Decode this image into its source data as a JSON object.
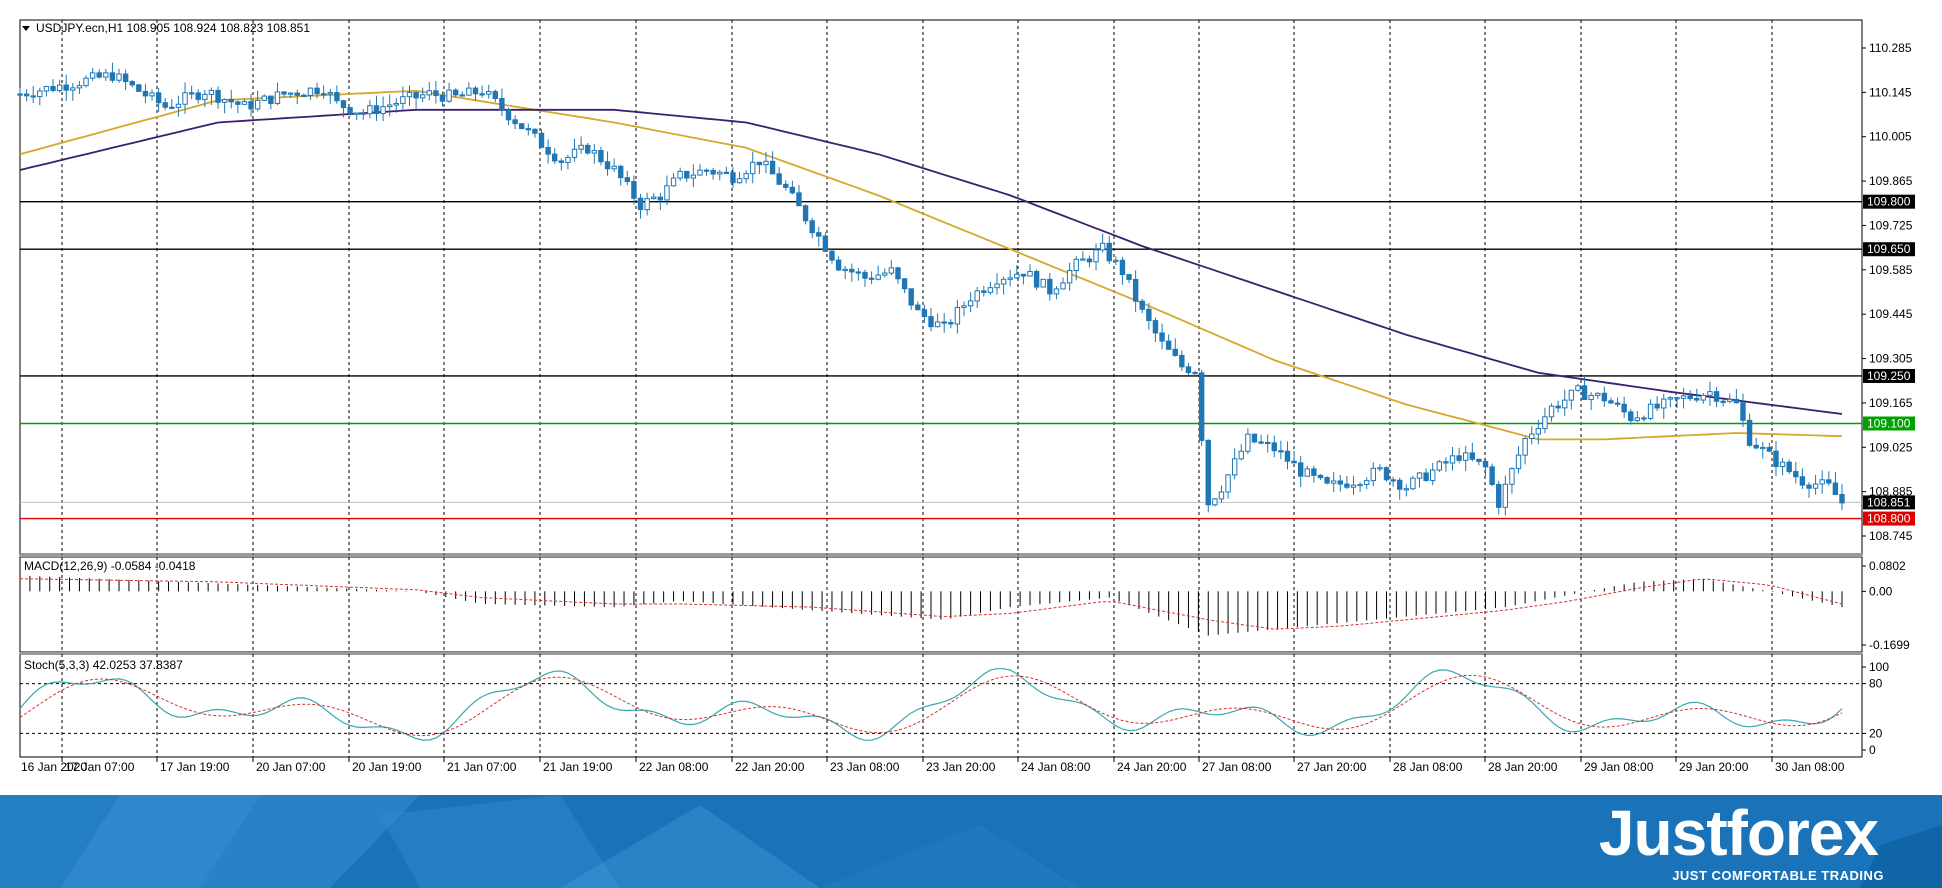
{
  "window": {
    "title": "USDJPY.ecn,H1  108.905 108.924 108.823 108.851",
    "indicators": {
      "macd": "MACD(12,26,9) -0.0584 -0.0418",
      "stoch": "Stoch(5,3,3) 42.0253 37.8387"
    }
  },
  "brand": {
    "name": "Justforex",
    "tagline": "JUST COMFORTABLE TRADING"
  },
  "colors": {
    "candle": "#1f77b4",
    "ma_fast": "#d4a82a",
    "ma_slow": "#3c1f6e",
    "support_level": "#dd0000",
    "pivot_level": "#00a000",
    "resistance_levels": "#000000",
    "stoch_main": "#3aa7b0",
    "stoch_signal": "#d83030",
    "brand_bg": "#1a73b8"
  },
  "chart_data": {
    "type": "line",
    "symbol": "USDJPY.ecn",
    "timeframe": "H1",
    "ohlc_last": {
      "open": 108.905,
      "high": 108.924,
      "low": 108.823,
      "close": 108.851
    },
    "ylim": [
      108.745,
      110.285
    ],
    "y_ticks": [
      "110.285",
      "110.145",
      "110.005",
      "109.865",
      "109.725",
      "109.585",
      "109.445",
      "109.305",
      "109.165",
      "109.025",
      "108.885",
      "108.745"
    ],
    "x_ticks": [
      "16 Jan 2020",
      "17 Jan 07:00",
      "17 Jan 19:00",
      "20 Jan 07:00",
      "20 Jan 19:00",
      "21 Jan 07:00",
      "21 Jan 19:00",
      "22 Jan 08:00",
      "22 Jan 20:00",
      "23 Jan 08:00",
      "23 Jan 20:00",
      "24 Jan 08:00",
      "24 Jan 20:00",
      "27 Jan 08:00",
      "27 Jan 20:00",
      "28 Jan 08:00",
      "28 Jan 20:00",
      "29 Jan 08:00",
      "29 Jan 20:00",
      "30 Jan 08:00"
    ],
    "horizontal_levels": [
      {
        "value": 109.8,
        "label": "109.800",
        "color": "#000000"
      },
      {
        "value": 109.65,
        "label": "109.650",
        "color": "#000000"
      },
      {
        "value": 109.25,
        "label": "109.250",
        "color": "#000000"
      },
      {
        "value": 109.1,
        "label": "109.100",
        "color": "#00a000"
      },
      {
        "value": 108.8,
        "label": "108.800",
        "color": "#dd0000"
      }
    ],
    "current_price": {
      "value": 108.851,
      "label": "108.851"
    },
    "price_path": [
      [
        0,
        110.14
      ],
      [
        14,
        110.2
      ],
      [
        22,
        110.1
      ],
      [
        28,
        110.15
      ],
      [
        34,
        110.1
      ],
      [
        40,
        110.14
      ],
      [
        46,
        110.16
      ],
      [
        48,
        110.11
      ],
      [
        52,
        110.08
      ],
      [
        58,
        110.12
      ],
      [
        62,
        110.14
      ],
      [
        66,
        110.13
      ],
      [
        70,
        110.15
      ],
      [
        78,
        110.0
      ],
      [
        82,
        109.93
      ],
      [
        86,
        109.97
      ],
      [
        90,
        109.9
      ],
      [
        94,
        109.79
      ],
      [
        97,
        109.82
      ],
      [
        100,
        109.88
      ],
      [
        104,
        109.9
      ],
      [
        108,
        109.88
      ],
      [
        112,
        109.93
      ],
      [
        116,
        109.84
      ],
      [
        120,
        109.72
      ],
      [
        124,
        109.6
      ],
      [
        128,
        109.56
      ],
      [
        132,
        109.58
      ],
      [
        136,
        109.45
      ],
      [
        140,
        109.4
      ],
      [
        144,
        109.5
      ],
      [
        148,
        109.56
      ],
      [
        152,
        109.58
      ],
      [
        156,
        109.52
      ],
      [
        160,
        109.6
      ],
      [
        164,
        109.65
      ],
      [
        167,
        109.58
      ],
      [
        170,
        109.45
      ],
      [
        173,
        109.35
      ],
      [
        176,
        109.28
      ],
      [
        178,
        109.27
      ],
      [
        180,
        108.85
      ],
      [
        182,
        108.9
      ],
      [
        186,
        109.05
      ],
      [
        190,
        109.02
      ],
      [
        194,
        108.95
      ],
      [
        198,
        108.9
      ],
      [
        202,
        108.92
      ],
      [
        206,
        108.95
      ],
      [
        210,
        108.9
      ],
      [
        214,
        108.95
      ],
      [
        218,
        109.0
      ],
      [
        222,
        108.96
      ],
      [
        224,
        108.85
      ],
      [
        228,
        109.05
      ],
      [
        232,
        109.15
      ],
      [
        236,
        109.2
      ],
      [
        240,
        109.18
      ],
      [
        244,
        109.12
      ],
      [
        248,
        109.15
      ],
      [
        252,
        109.18
      ],
      [
        256,
        109.2
      ],
      [
        260,
        109.16
      ],
      [
        262,
        109.05
      ],
      [
        266,
        108.98
      ],
      [
        270,
        108.92
      ],
      [
        274,
        108.9
      ],
      [
        276,
        108.851
      ]
    ],
    "ma_fast_path": [
      [
        0,
        109.95
      ],
      [
        30,
        110.12
      ],
      [
        60,
        110.15
      ],
      [
        90,
        110.05
      ],
      [
        110,
        109.97
      ],
      [
        130,
        109.82
      ],
      [
        150,
        109.65
      ],
      [
        170,
        109.48
      ],
      [
        190,
        109.3
      ],
      [
        210,
        109.16
      ],
      [
        230,
        109.05
      ],
      [
        240,
        109.05
      ],
      [
        260,
        109.07
      ],
      [
        276,
        109.06
      ]
    ],
    "ma_slow_path": [
      [
        0,
        109.9
      ],
      [
        30,
        110.05
      ],
      [
        60,
        110.09
      ],
      [
        90,
        110.09
      ],
      [
        110,
        110.05
      ],
      [
        130,
        109.95
      ],
      [
        150,
        109.82
      ],
      [
        170,
        109.66
      ],
      [
        190,
        109.52
      ],
      [
        210,
        109.38
      ],
      [
        230,
        109.26
      ],
      [
        250,
        109.2
      ],
      [
        276,
        109.13
      ]
    ],
    "macd": {
      "label": "MACD(12,26,9)",
      "main": -0.0584,
      "signal": -0.0418,
      "y_ticks": [
        "0.0802",
        "0.00",
        "-0.1699"
      ],
      "ylim": [
        -0.1699,
        0.0802
      ],
      "histogram_path": [
        [
          0,
          0.05
        ],
        [
          30,
          0.025
        ],
        [
          60,
          0.0
        ],
        [
          70,
          -0.04
        ],
        [
          90,
          -0.05
        ],
        [
          100,
          -0.03
        ],
        [
          120,
          -0.06
        ],
        [
          140,
          -0.09
        ],
        [
          150,
          -0.05
        ],
        [
          165,
          -0.02
        ],
        [
          180,
          -0.14
        ],
        [
          190,
          -0.12
        ],
        [
          200,
          -0.1
        ],
        [
          215,
          -0.07
        ],
        [
          225,
          -0.05
        ],
        [
          235,
          -0.01
        ],
        [
          245,
          0.03
        ],
        [
          255,
          0.04
        ],
        [
          265,
          0.0
        ],
        [
          276,
          -0.05
        ]
      ],
      "signal_path": [
        [
          0,
          0.04
        ],
        [
          30,
          0.03
        ],
        [
          60,
          0.005
        ],
        [
          70,
          -0.02
        ],
        [
          90,
          -0.04
        ],
        [
          100,
          -0.04
        ],
        [
          120,
          -0.05
        ],
        [
          140,
          -0.08
        ],
        [
          150,
          -0.07
        ],
        [
          165,
          -0.03
        ],
        [
          180,
          -0.09
        ],
        [
          190,
          -0.12
        ],
        [
          200,
          -0.11
        ],
        [
          215,
          -0.08
        ],
        [
          225,
          -0.06
        ],
        [
          235,
          -0.03
        ],
        [
          245,
          0.01
        ],
        [
          255,
          0.04
        ],
        [
          265,
          0.02
        ],
        [
          276,
          -0.04
        ]
      ]
    },
    "stochastic": {
      "label": "Stoch(5,3,3)",
      "main": 42.0253,
      "signal": 37.8387,
      "y_ticks": [
        "100",
        "80",
        "20",
        "0"
      ],
      "ylim": [
        0,
        100
      ],
      "levels": [
        80,
        20
      ]
    }
  }
}
